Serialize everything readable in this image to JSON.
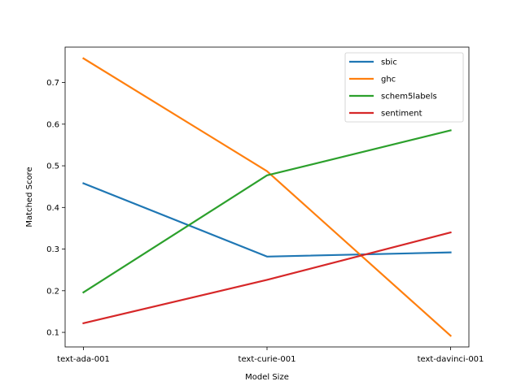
{
  "chart_data": {
    "type": "line",
    "title": "",
    "xlabel": "Model Size",
    "ylabel": "Matched Score",
    "categories": [
      "text-ada-001",
      "text-curie-001",
      "text-davinci-001"
    ],
    "ylim": [
      0.065,
      0.785
    ],
    "yticks": [
      0.1,
      0.2,
      0.3,
      0.4,
      0.5,
      0.6,
      0.7
    ],
    "grid": false,
    "legend_position": "top-right",
    "series": [
      {
        "name": "sbic",
        "color": "#1f77b4",
        "values": [
          0.458,
          0.282,
          0.292
        ]
      },
      {
        "name": "ghc",
        "color": "#ff7f0e",
        "values": [
          0.758,
          0.487,
          0.092
        ]
      },
      {
        "name": "schem5labels",
        "color": "#2ca02c",
        "values": [
          0.196,
          0.477,
          0.585
        ]
      },
      {
        "name": "sentiment",
        "color": "#d62728",
        "values": [
          0.122,
          0.226,
          0.34
        ]
      }
    ]
  }
}
